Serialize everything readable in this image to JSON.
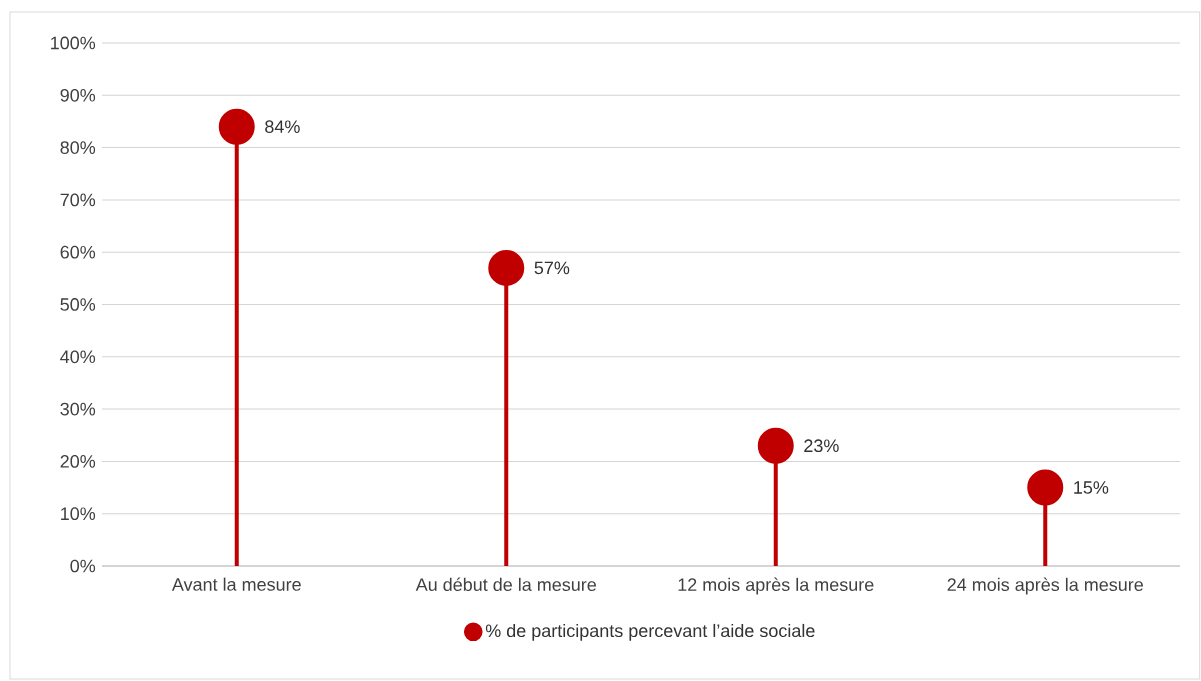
{
  "chart_data": {
    "type": "lollipop",
    "categories": [
      "Avant la mesure",
      "Au début de la mesure",
      "12 mois après la mesure",
      "24 mois après la mesure"
    ],
    "series": [
      {
        "name": "% de participants percevant l’aide sociale",
        "color": "#c00000",
        "values": [
          84,
          57,
          23,
          15
        ],
        "value_labels": [
          "84%",
          "57%",
          "23%",
          "15%"
        ]
      }
    ],
    "ylim": [
      0,
      100
    ],
    "yticks": [
      {
        "value": 0,
        "label": "0%"
      },
      {
        "value": 10,
        "label": "10%"
      },
      {
        "value": 20,
        "label": "20%"
      },
      {
        "value": 30,
        "label": "30%"
      },
      {
        "value": 40,
        "label": "40%"
      },
      {
        "value": 50,
        "label": "50%"
      },
      {
        "value": 60,
        "label": "60%"
      },
      {
        "value": 70,
        "label": "70%"
      },
      {
        "value": 80,
        "label": "80%"
      },
      {
        "value": 90,
        "label": "90%"
      },
      {
        "value": 100,
        "label": "100%"
      }
    ],
    "grid": "y",
    "legend": "bottom",
    "marker": "circle",
    "line_style": "solid"
  }
}
